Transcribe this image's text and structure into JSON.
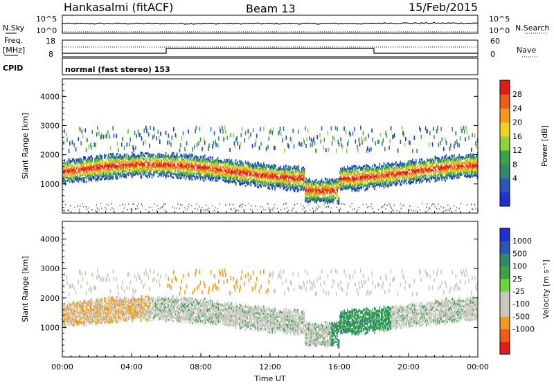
{
  "header": {
    "title": "Hankasalmi (fitACF)",
    "beam": "Beam 13",
    "date": "15/Feb/2015"
  },
  "top_panels": {
    "nsky_label": "N.Sky",
    "nsky_ticks": [
      "10^5",
      "10^0"
    ],
    "nsearch_label": "N.Search",
    "freq_label_1": "Freq.",
    "freq_label_2": "[MHz]",
    "freq_ticks": [
      "18",
      "8"
    ],
    "nave_ticks": [
      "60",
      "0"
    ],
    "nave_label": "Nave",
    "cpid_label": "CPID",
    "cpid_text": "normal (fast stereo) 153"
  },
  "colors": {
    "power": [
      "#1f2fd6",
      "#2b55b7",
      "#2e8a6a",
      "#3aa24a",
      "#8fd23a",
      "#f0d31d",
      "#f39a1c",
      "#ef5b1a",
      "#e21b1b"
    ],
    "velocity": [
      "#e21b1b",
      "#f05a16",
      "#f39a1c",
      "#c8c8c0",
      "#c8c8c0",
      "#6ad63a",
      "#3aa24a",
      "#2e8a6a",
      "#2b55b7",
      "#1f2fd6"
    ]
  },
  "chart_data": [
    {
      "type": "heatmap",
      "name": "power",
      "ylabel": "Slant Range [km]",
      "yticks": [
        "4000",
        "3000",
        "2000",
        "1000"
      ],
      "ylim": [
        0,
        4600
      ],
      "colorbar_label": "Power [dB]",
      "colorbar_ticks": [
        "28",
        "24",
        "20",
        "16",
        "12",
        "8",
        "4"
      ],
      "colorbar_range": [
        0,
        32
      ]
    },
    {
      "type": "heatmap",
      "name": "velocity",
      "ylabel": "Slant Range [km]",
      "yticks": [
        "4000",
        "3000",
        "2000",
        "1000"
      ],
      "ylim": [
        0,
        4600
      ],
      "colorbar_label": "Velocity [m s⁻¹]",
      "colorbar_ticks": [
        "1000",
        "500",
        "100",
        "25",
        "-25",
        "-100",
        "-500",
        "-1000"
      ],
      "xlabel": "Time UT",
      "xticks": [
        "00:00",
        "04:00",
        "08:00",
        "12:00",
        "16:00",
        "20:00",
        "00:00"
      ]
    }
  ]
}
